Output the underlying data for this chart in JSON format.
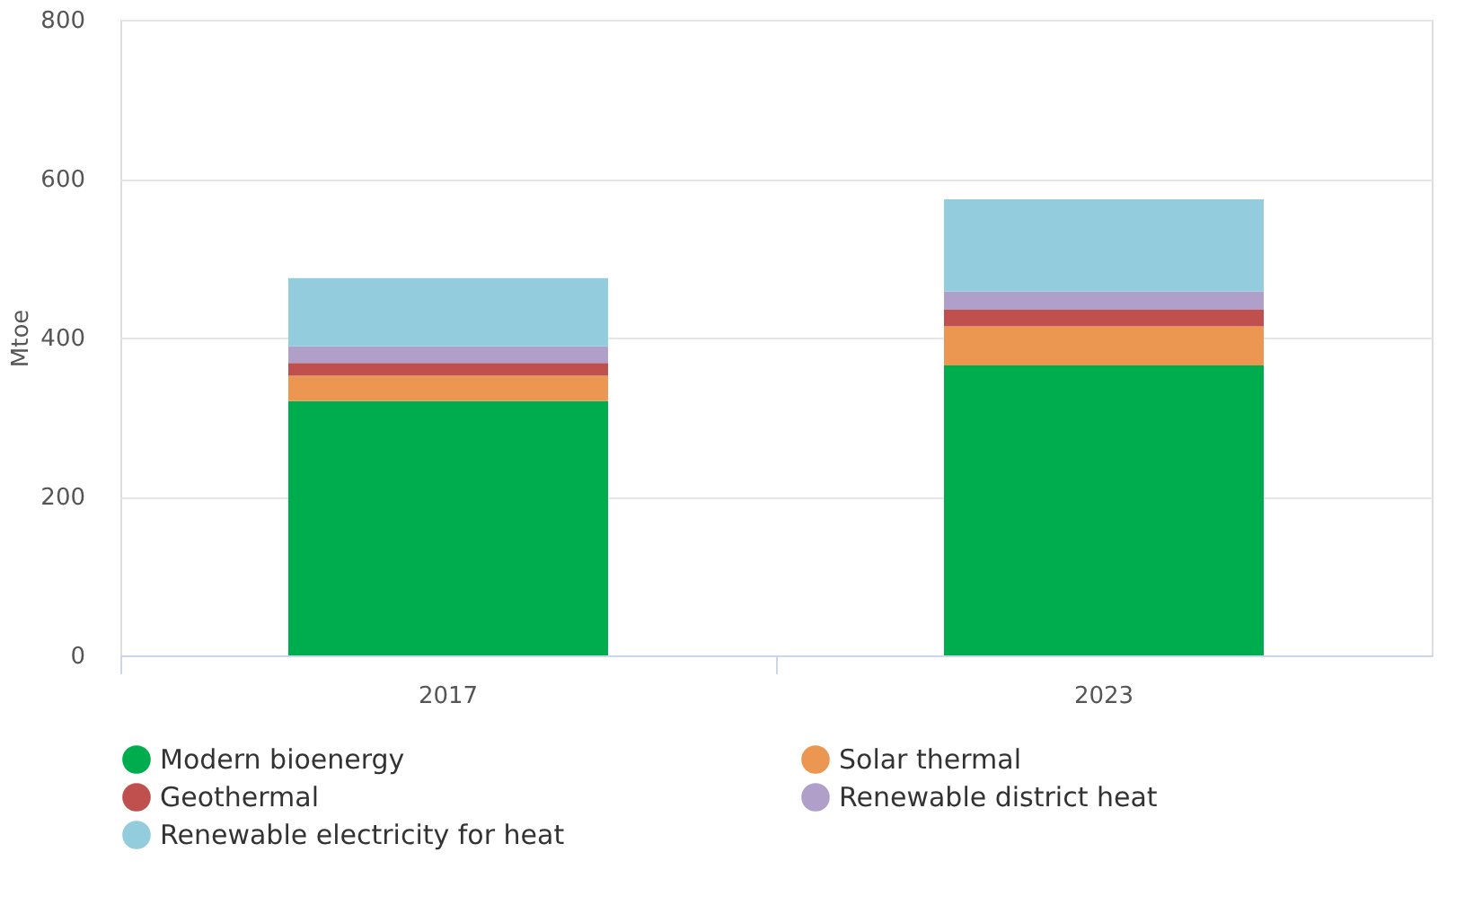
{
  "chart_data": {
    "type": "bar",
    "stacked": true,
    "ylabel": "Mtoe",
    "categories": [
      "2017",
      "2023"
    ],
    "series": [
      {
        "name": "Modern bioenergy",
        "color": "#00ad4e",
        "values": [
          320,
          365
        ]
      },
      {
        "name": "Solar thermal",
        "color": "#eb9752",
        "values": [
          32,
          49
        ]
      },
      {
        "name": "Geothermal",
        "color": "#c0504d",
        "values": [
          16,
          21
        ]
      },
      {
        "name": "Renewable district heat",
        "color": "#b09fc9",
        "values": [
          21,
          23
        ]
      },
      {
        "name": "Renewable electricity for heat",
        "color": "#93cddd",
        "values": [
          86,
          116
        ]
      }
    ],
    "ylim": [
      0,
      800
    ],
    "yticks": [
      0,
      200,
      400,
      600,
      800
    ],
    "grid": "y",
    "legend": "bottom"
  }
}
